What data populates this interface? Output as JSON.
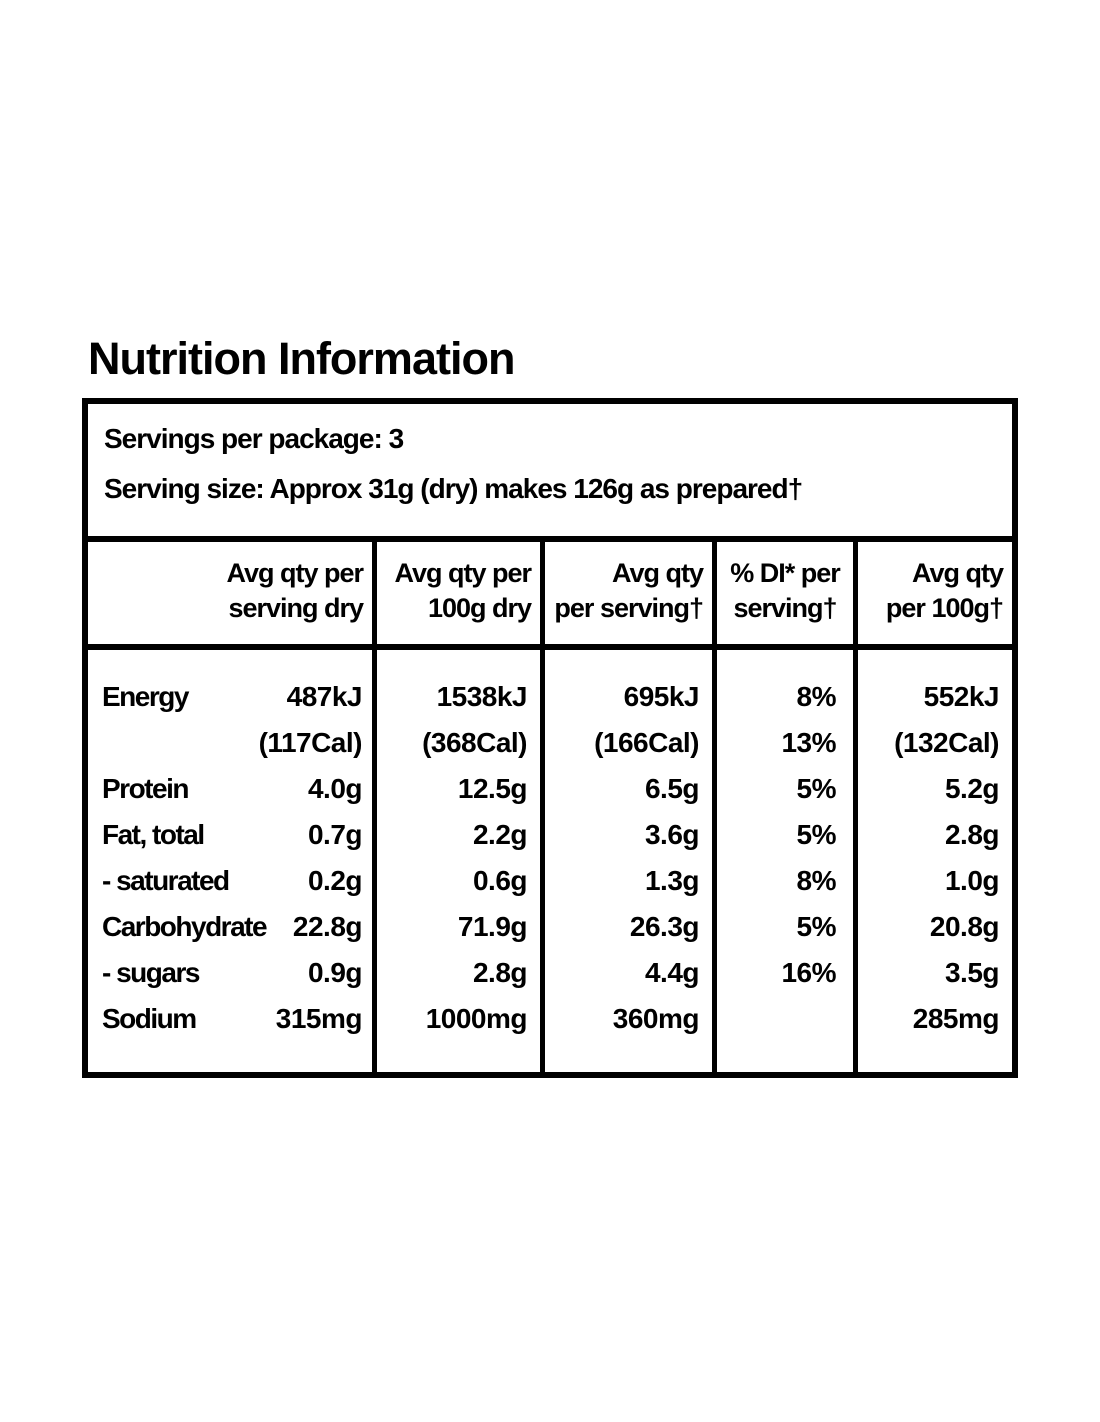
{
  "page": {
    "title": "Nutrition Information"
  },
  "colors": {
    "text": "#000000",
    "background": "#ffffff",
    "table_border": "#000000"
  },
  "serving_info": {
    "servings_per_package": "Servings per package: 3",
    "serving_size": "Serving size: Approx 31g (dry) makes 126g as prepared†"
  },
  "columns": {
    "col1": {
      "line1": "Avg qty per",
      "line2": "serving dry"
    },
    "col2": {
      "line1": "Avg qty per",
      "line2": "100g dry"
    },
    "col3": {
      "line1": "Avg qty",
      "line2": "per serving†"
    },
    "col4": {
      "line1": "% DI* per",
      "line2": "serving†"
    },
    "col5": {
      "line1": "Avg qty",
      "line2": "per 100g†"
    }
  },
  "rows": [
    {
      "label": "Energy",
      "serving_dry": "487kJ",
      "dry_100g": "1538kJ",
      "per_serving": "695kJ",
      "di": "8%",
      "per_100g": "552kJ"
    },
    {
      "label": "",
      "serving_dry": "(117Cal)",
      "dry_100g": "(368Cal)",
      "per_serving": "(166Cal)",
      "di": "",
      "per_100g": "(132Cal)"
    },
    {
      "label": "Protein",
      "serving_dry": "4.0g",
      "dry_100g": "12.5g",
      "per_serving": "6.5g",
      "di": "13%",
      "per_100g": "5.2g"
    },
    {
      "label": "Fat, total",
      "serving_dry": "0.7g",
      "dry_100g": "2.2g",
      "per_serving": "3.6g",
      "di": "5%",
      "per_100g": "2.8g"
    },
    {
      "label": "- saturated",
      "serving_dry": "0.2g",
      "dry_100g": "0.6g",
      "per_serving": "1.3g",
      "di": "5%",
      "per_100g": "1.0g"
    },
    {
      "label": "Carbohydrate",
      "serving_dry": "22.8g",
      "dry_100g": "71.9g",
      "per_serving": "26.3g",
      "di": "8%",
      "per_100g": "20.8g"
    },
    {
      "label": "- sugars",
      "serving_dry": "0.9g",
      "dry_100g": "2.8g",
      "per_serving": "4.4g",
      "di": "5%",
      "per_100g": "3.5g"
    },
    {
      "label": "Sodium",
      "serving_dry": "315mg",
      "dry_100g": "1000mg",
      "per_serving": "360mg",
      "di": "16%",
      "per_100g": "285mg"
    }
  ]
}
